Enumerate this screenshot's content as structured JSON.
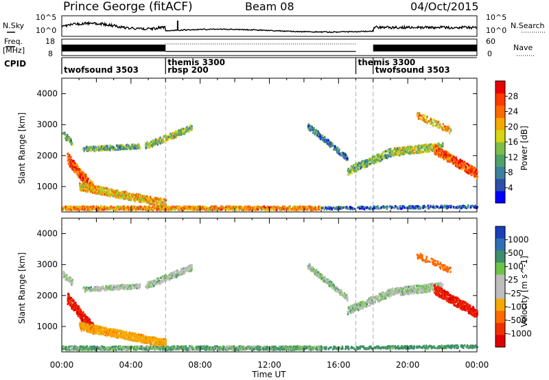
{
  "header": {
    "station": "Prince George (fitACF)",
    "beam": "Beam 08",
    "date": "04/Oct/2015"
  },
  "summary_panels": {
    "nsky": {
      "label": "N.Sky",
      "left_ticks": [
        "10^5",
        "10^0"
      ],
      "right_ticks": [
        "10^5",
        "10^0"
      ],
      "right_label": "N.Search"
    },
    "freq": {
      "label": "Freq.",
      "unit": "[MHz]",
      "left_ticks": [
        "18",
        "8"
      ],
      "right_ticks": [
        "60",
        "0"
      ],
      "right_label": "Nave"
    },
    "cpid": {
      "label": "CPID",
      "segments": [
        {
          "start_h": 0,
          "end_h": 6,
          "line1": "twofsound 3503",
          "line2": ""
        },
        {
          "start_h": 6,
          "end_h": 17,
          "line1": "themis 3300",
          "line2": "rbsp 200"
        },
        {
          "start_h": 17,
          "end_h": 18,
          "line1": "themis 3300",
          "line2": ""
        },
        {
          "start_h": 18,
          "end_h": 24,
          "line1": "twofsound 3503",
          "line2": ""
        }
      ]
    }
  },
  "chart_data": [
    {
      "type": "heatmap",
      "name": "power",
      "ylabel": "Slant Range [km]",
      "ylim": [
        180,
        4500
      ],
      "yticks": [
        1000,
        2000,
        3000,
        4000
      ],
      "xlim": [
        0,
        24
      ],
      "colorbar": {
        "label": "Power [dB]",
        "range": [
          0,
          32
        ],
        "ticks": [
          4,
          8,
          12,
          16,
          20,
          24,
          28
        ]
      }
    },
    {
      "type": "heatmap",
      "name": "velocity",
      "ylabel": "Slant Range [km]",
      "ylim": [
        180,
        4500
      ],
      "yticks": [
        1000,
        2000,
        3000,
        4000
      ],
      "xlim": [
        0,
        24
      ],
      "xlabel": "Time UT",
      "xticks": [
        "00:00",
        "04:00",
        "08:00",
        "12:00",
        "16:00",
        "20:00",
        "00:00"
      ],
      "colorbar": {
        "label": "Velocity [m s^-1]",
        "ticks": [
          "1000",
          "500",
          "100",
          "25",
          "-25",
          "-100",
          "-500",
          "-1000"
        ]
      }
    }
  ],
  "colors": {
    "power_scale": [
      "#0000ff",
      "#2e4fa8",
      "#3f7fa0",
      "#4ea36b",
      "#7dbd4a",
      "#d6d615",
      "#f5a800",
      "#ff6a00",
      "#ff3b00",
      "#e80000"
    ],
    "velocity_scale": [
      "#1a3fb8",
      "#2f6fb8",
      "#3e8f6a",
      "#6dc24a",
      "#bdbdbd",
      "#bdbdbd",
      "#f5a800",
      "#ff6a00",
      "#f03000",
      "#e00000"
    ]
  }
}
